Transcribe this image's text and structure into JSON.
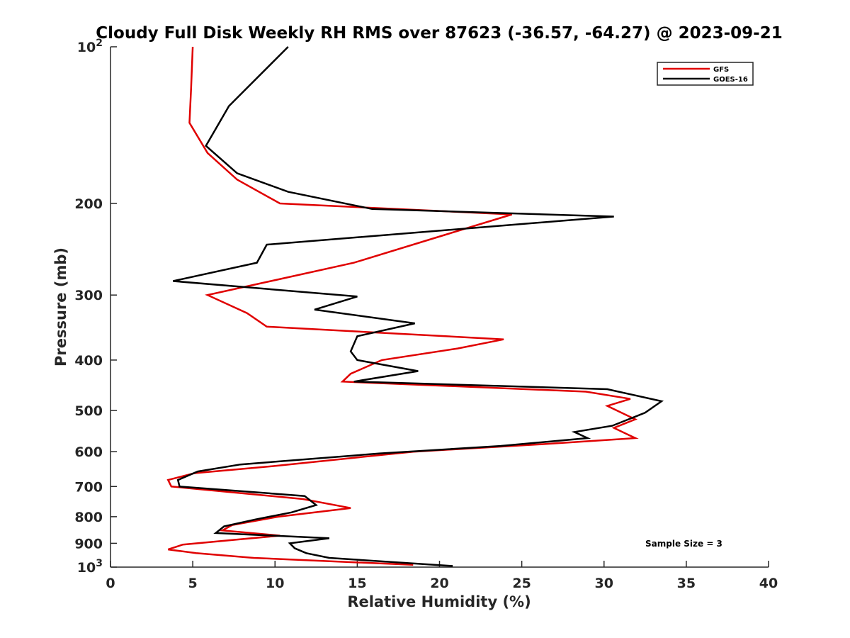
{
  "chart_data": {
    "type": "line",
    "title": "Cloudy Full Disk Weekly RH RMS over 87623 (-36.57, -64.27) @ 2023-09-21",
    "xlabel": "Relative Humidity (%)",
    "ylabel": "Pressure (mb)",
    "xlim": [
      0,
      40
    ],
    "ylim": [
      100,
      1000
    ],
    "yscale": "log",
    "y_reversed": true,
    "grid": false,
    "legend_position": "top-right",
    "x_ticks": [
      0,
      5,
      10,
      15,
      20,
      25,
      30,
      35,
      40
    ],
    "x_tick_labels": [
      "0",
      "5",
      "10",
      "15",
      "20",
      "25",
      "30",
      "35",
      "40"
    ],
    "y_ticks": [
      100,
      200,
      300,
      400,
      500,
      600,
      700,
      800,
      900,
      1000
    ],
    "y_tick_labels": [
      {
        "base": "10",
        "exp": "2"
      },
      {
        "base": "200",
        "exp": ""
      },
      {
        "base": "300",
        "exp": ""
      },
      {
        "base": "400",
        "exp": ""
      },
      {
        "base": "500",
        "exp": ""
      },
      {
        "base": "600",
        "exp": ""
      },
      {
        "base": "700",
        "exp": ""
      },
      {
        "base": "800",
        "exp": ""
      },
      {
        "base": "900",
        "exp": ""
      },
      {
        "base": "10",
        "exp": "3"
      }
    ],
    "series": [
      {
        "name": "GFS",
        "color": "#e00000",
        "x": [
          5.0,
          4.9,
          4.8,
          5.9,
          7.7,
          10.3,
          24.4,
          20.3,
          14.8,
          5.9,
          8.3,
          9.5,
          23.9,
          21.1,
          16.5,
          14.6,
          14.1,
          28.9,
          31.6,
          30.2,
          31.9,
          30.6,
          31.9,
          26.4,
          18.4,
          9.8,
          5.1,
          3.5,
          3.7,
          11.7,
          14.6,
          10.2,
          7.4,
          6.8,
          10.3,
          4.4,
          3.5,
          5.2,
          8.7,
          18.4
        ],
        "y": [
          100,
          120,
          140,
          160,
          180,
          200,
          210,
          230,
          260,
          300,
          325,
          345,
          365,
          380,
          400,
          425,
          440,
          460,
          475,
          490,
          520,
          540,
          565,
          580,
          600,
          640,
          660,
          680,
          700,
          740,
          770,
          800,
          830,
          850,
          870,
          905,
          925,
          940,
          960,
          990
        ]
      },
      {
        "name": "GOES-16",
        "color": "#000000",
        "x": [
          10.8,
          7.2,
          5.8,
          7.7,
          10.8,
          15.9,
          30.6,
          9.5,
          8.9,
          3.8,
          15.0,
          12.4,
          18.5,
          15.0,
          14.6,
          15.0,
          18.7,
          14.8,
          30.2,
          33.5,
          32.5,
          30.5,
          28.2,
          29.0,
          23.7,
          16.3,
          7.9,
          5.3,
          4.1,
          4.2,
          11.8,
          12.5,
          11.0,
          8.8,
          6.9,
          6.4,
          13.3,
          10.9,
          11.2,
          11.9,
          13.3,
          20.8
        ],
        "y": [
          100,
          130,
          155,
          175,
          190,
          205,
          212,
          240,
          260,
          282,
          302,
          320,
          340,
          360,
          385,
          400,
          420,
          440,
          455,
          480,
          505,
          535,
          550,
          565,
          585,
          605,
          635,
          655,
          680,
          700,
          730,
          760,
          785,
          810,
          835,
          860,
          880,
          900,
          920,
          940,
          960,
          995
        ]
      }
    ],
    "annotation": "Sample Size = 3"
  }
}
